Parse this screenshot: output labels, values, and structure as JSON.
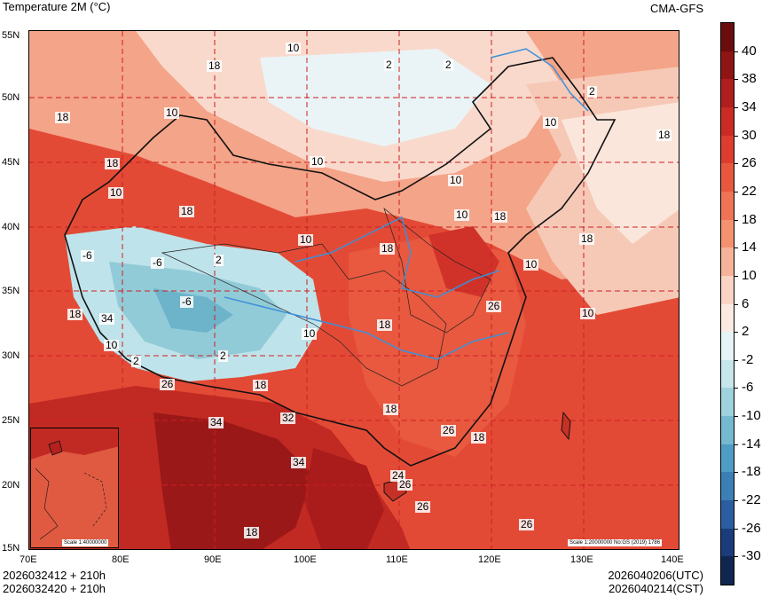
{
  "header": {
    "title": "Temperature  2M (°C)",
    "model": "CMA-GFS"
  },
  "footer": {
    "run_utc": "2026032412 + 210h",
    "run_cst": "2026032420 + 210h",
    "valid_utc": "2026040206(UTC)",
    "valid_cst": "2026040214(CST)"
  },
  "axes": {
    "latitudes": [
      "55N",
      "50N",
      "45N",
      "40N",
      "35N",
      "30N",
      "25N",
      "20N",
      "15N"
    ],
    "longitudes": [
      "70E",
      "80E",
      "90E",
      "100E",
      "110E",
      "120E",
      "130E",
      "140E"
    ]
  },
  "scale_labels": {
    "inset": "Scale 1:40000000",
    "main": "Scale 1:20000000 No:GS (2019) 1786"
  },
  "colorbar": {
    "labels": [
      "40",
      "38",
      "34",
      "30",
      "26",
      "22",
      "18",
      "14",
      "10",
      "6",
      "2",
      "-2",
      "-6",
      "-10",
      "-14",
      "-18",
      "-22",
      "-26",
      "-30"
    ],
    "colors": [
      "#6b0d0d",
      "#8f1414",
      "#b01e1e",
      "#cc2a24",
      "#de3d2e",
      "#e8583f",
      "#ef7354",
      "#f4926f",
      "#f7b39a",
      "#f9d4c4",
      "#fbeae2",
      "#e5f4f6",
      "#c6e6ec",
      "#9ed2dd",
      "#74b9cf",
      "#4f9cc4",
      "#3a7fb6",
      "#2a5ea0",
      "#1a3c7a",
      "#102650"
    ]
  },
  "contour_labels": [
    "10",
    "18",
    "2",
    "2",
    "18",
    "10",
    "2",
    "10",
    "18",
    "10",
    "10",
    "18",
    "18",
    "10",
    "10",
    "18",
    "18",
    "10",
    "-6",
    "-6",
    "2",
    "10",
    "18",
    "-6",
    "18",
    "10",
    "2",
    "2",
    "26",
    "18",
    "34",
    "32",
    "18",
    "34",
    "26",
    "18",
    "26",
    "26",
    "18",
    "24",
    "26",
    "10",
    "10",
    "18",
    "26",
    "34"
  ],
  "colors": {
    "warm_base": "#e34a36",
    "hot": "#b3201d",
    "cold": "#aedde6",
    "mild": "#f7c7b5",
    "river": "#3d8fd8",
    "grid": "#cc2020"
  }
}
